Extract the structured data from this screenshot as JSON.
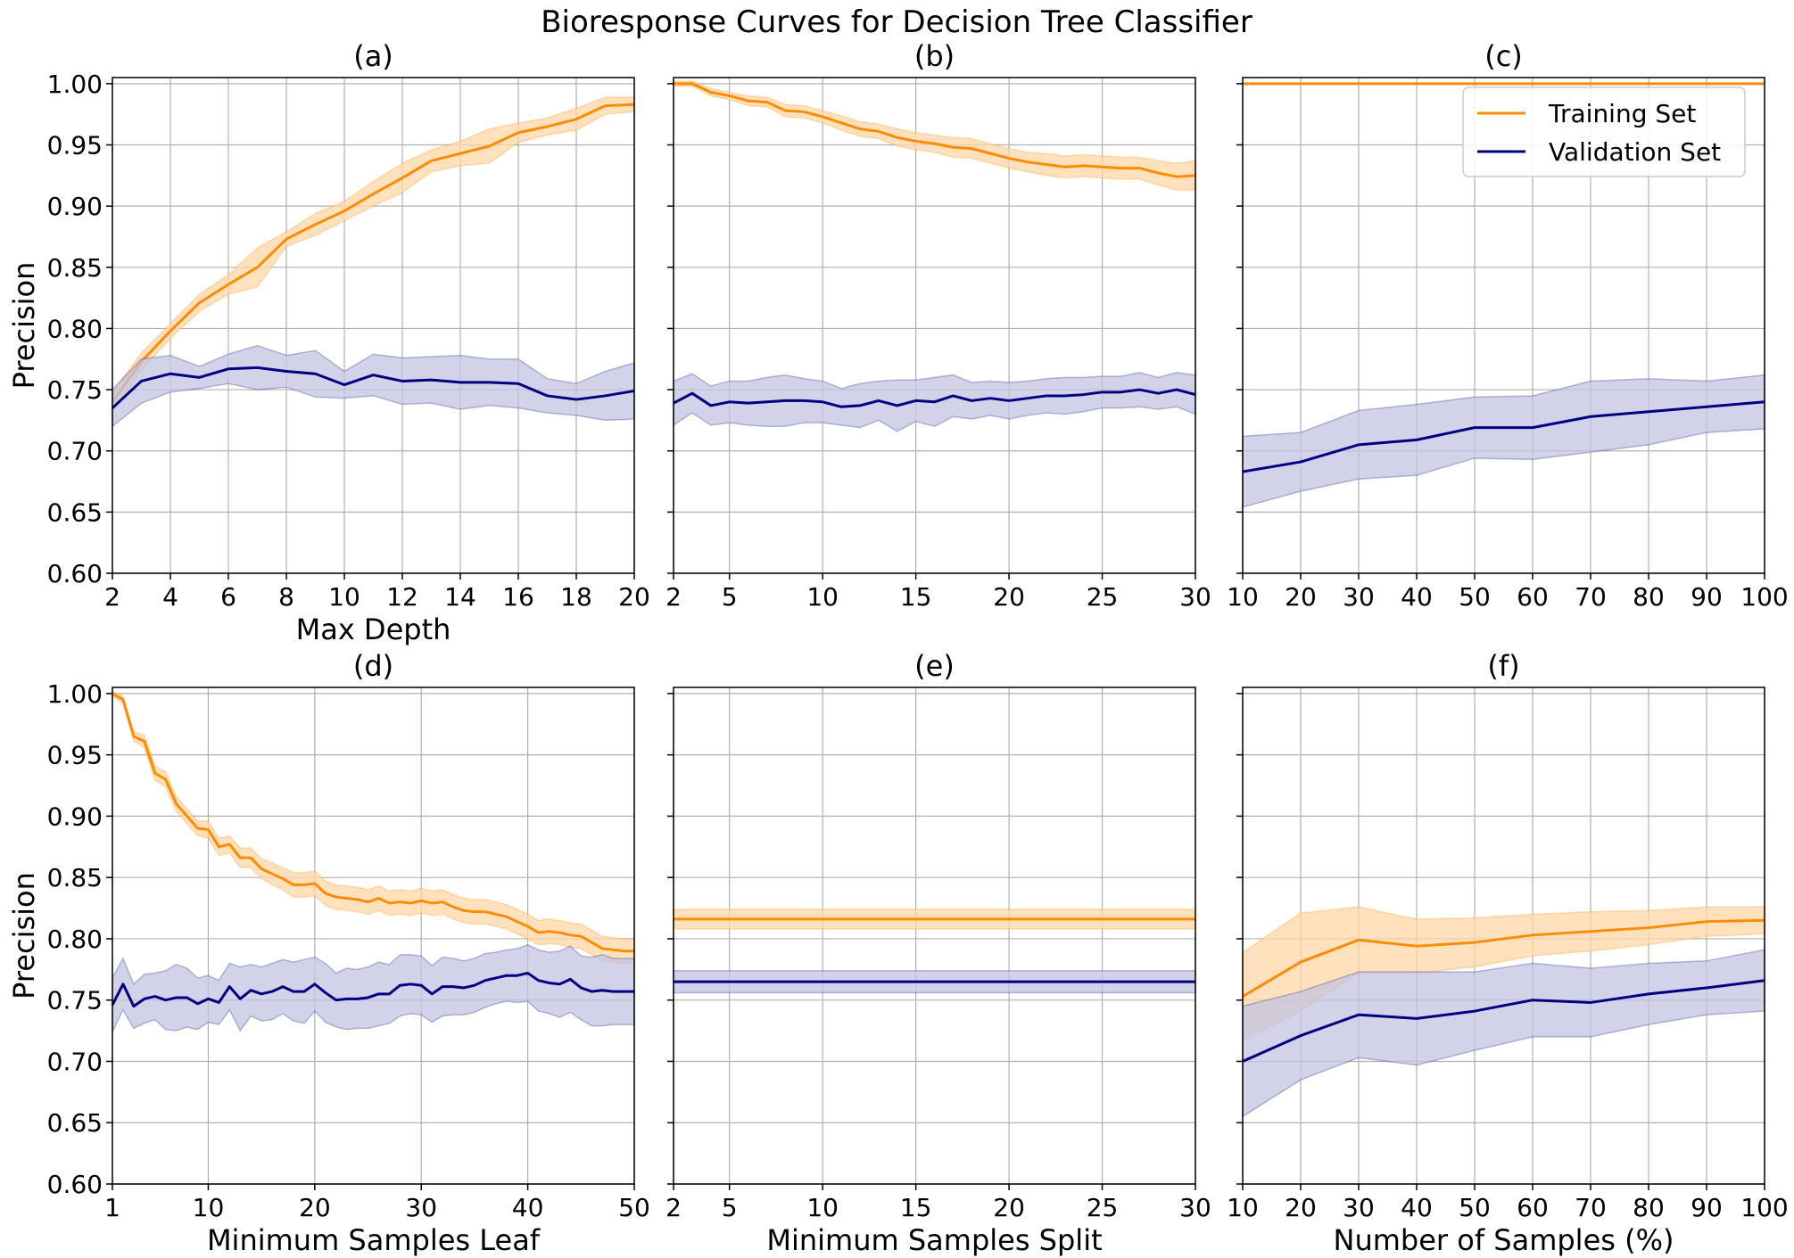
{
  "figure": {
    "title": "Bioresponse Curves for Decision Tree Classifier",
    "colors": {
      "training": "#ff8c00",
      "validation": "#000080",
      "training_band": "#ffd7a8",
      "validation_band": "#c3c3e0",
      "grid": "#b0b0b0"
    },
    "legend": {
      "location": "upper-right of panel (c)",
      "entries": [
        "Training Set",
        "Validation Set"
      ]
    }
  },
  "chart_data": [
    {
      "type": "line",
      "title": "(a)",
      "xlabel": "Max Depth",
      "ylabel": "Precision",
      "xlim": [
        2,
        20
      ],
      "ylim": [
        0.6,
        1.005
      ],
      "grid": true,
      "xticks": [
        2,
        4,
        6,
        8,
        10,
        12,
        14,
        16,
        18,
        20
      ],
      "yticks": [
        "0.60",
        "0.65",
        "0.70",
        "0.75",
        "0.80",
        "0.85",
        "0.90",
        "0.95",
        "1.00"
      ],
      "show_yticklabels": true,
      "x": [
        2,
        3,
        4,
        5,
        6,
        7,
        8,
        9,
        10,
        11,
        12,
        13,
        14,
        15,
        16,
        17,
        18,
        19,
        20
      ],
      "series": [
        {
          "name": "Training Set",
          "values": [
            0.74,
            0.773,
            0.798,
            0.821,
            0.836,
            0.85,
            0.873,
            0.885,
            0.896,
            0.91,
            0.923,
            0.937,
            0.943,
            0.949,
            0.96,
            0.965,
            0.971,
            0.982,
            0.983
          ],
          "band": [
            0.008,
            0.007,
            0.006,
            0.007,
            0.008,
            0.016,
            0.006,
            0.009,
            0.008,
            0.01,
            0.012,
            0.009,
            0.01,
            0.014,
            0.008,
            0.007,
            0.009,
            0.007,
            0.006
          ]
        },
        {
          "name": "Validation Set",
          "values": [
            0.735,
            0.757,
            0.763,
            0.76,
            0.767,
            0.768,
            0.765,
            0.763,
            0.754,
            0.762,
            0.757,
            0.758,
            0.756,
            0.756,
            0.755,
            0.745,
            0.742,
            0.745,
            0.749
          ],
          "band": [
            0.015,
            0.018,
            0.015,
            0.009,
            0.012,
            0.018,
            0.013,
            0.019,
            0.011,
            0.017,
            0.019,
            0.019,
            0.022,
            0.019,
            0.02,
            0.014,
            0.013,
            0.02,
            0.023
          ]
        }
      ]
    },
    {
      "type": "line",
      "title": "(b)",
      "xlabel": "",
      "ylabel": "",
      "xlim": [
        2,
        30
      ],
      "ylim": [
        0.6,
        1.005
      ],
      "grid": true,
      "xticks": [
        2,
        5,
        10,
        15,
        20,
        25,
        30
      ],
      "yticks": [
        "0.60",
        "0.65",
        "0.70",
        "0.75",
        "0.80",
        "0.85",
        "0.90",
        "0.95",
        "1.00"
      ],
      "show_yticklabels": false,
      "x": [
        2,
        3,
        4,
        5,
        6,
        7,
        8,
        9,
        10,
        11,
        12,
        13,
        14,
        15,
        16,
        17,
        18,
        19,
        20,
        21,
        22,
        23,
        24,
        25,
        26,
        27,
        28,
        29,
        30
      ],
      "series": [
        {
          "name": "Training Set",
          "values": [
            1.0,
            1.0,
            0.993,
            0.99,
            0.986,
            0.985,
            0.978,
            0.977,
            0.973,
            0.968,
            0.963,
            0.961,
            0.956,
            0.953,
            0.951,
            0.948,
            0.947,
            0.943,
            0.939,
            0.936,
            0.934,
            0.932,
            0.933,
            0.932,
            0.931,
            0.931,
            0.927,
            0.924,
            0.925
          ],
          "band": [
            0.002,
            0.002,
            0.003,
            0.003,
            0.004,
            0.004,
            0.005,
            0.005,
            0.005,
            0.006,
            0.006,
            0.006,
            0.007,
            0.007,
            0.007,
            0.008,
            0.008,
            0.008,
            0.008,
            0.008,
            0.009,
            0.009,
            0.009,
            0.009,
            0.009,
            0.009,
            0.01,
            0.011,
            0.012
          ]
        },
        {
          "name": "Validation Set",
          "values": [
            0.739,
            0.747,
            0.737,
            0.74,
            0.739,
            0.74,
            0.741,
            0.741,
            0.74,
            0.736,
            0.737,
            0.741,
            0.737,
            0.741,
            0.74,
            0.745,
            0.741,
            0.743,
            0.741,
            0.743,
            0.745,
            0.745,
            0.746,
            0.748,
            0.748,
            0.75,
            0.747,
            0.75,
            0.746
          ],
          "band": [
            0.018,
            0.016,
            0.016,
            0.017,
            0.018,
            0.02,
            0.021,
            0.018,
            0.017,
            0.015,
            0.018,
            0.016,
            0.021,
            0.017,
            0.02,
            0.017,
            0.015,
            0.014,
            0.015,
            0.014,
            0.014,
            0.015,
            0.014,
            0.013,
            0.013,
            0.014,
            0.013,
            0.014,
            0.016
          ]
        }
      ]
    },
    {
      "type": "line",
      "title": "(c)",
      "xlabel": "",
      "ylabel": "",
      "xlim": [
        10,
        100
      ],
      "ylim": [
        0.6,
        1.005
      ],
      "grid": true,
      "xticks": [
        10,
        20,
        30,
        40,
        50,
        60,
        70,
        80,
        90,
        100
      ],
      "yticks": [
        "0.60",
        "0.65",
        "0.70",
        "0.75",
        "0.80",
        "0.85",
        "0.90",
        "0.95",
        "1.00"
      ],
      "show_yticklabels": false,
      "x": [
        10,
        20,
        30,
        40,
        50,
        60,
        70,
        80,
        90,
        100
      ],
      "series": [
        {
          "name": "Training Set",
          "values": [
            1.0,
            1.0,
            1.0,
            1.0,
            1.0,
            1.0,
            1.0,
            1.0,
            1.0,
            1.0
          ],
          "band": [
            0,
            0,
            0,
            0,
            0,
            0,
            0,
            0,
            0,
            0
          ]
        },
        {
          "name": "Validation Set",
          "values": [
            0.683,
            0.691,
            0.705,
            0.709,
            0.719,
            0.719,
            0.728,
            0.732,
            0.736,
            0.74
          ],
          "band": [
            0.029,
            0.024,
            0.028,
            0.029,
            0.025,
            0.026,
            0.029,
            0.027,
            0.021,
            0.022
          ]
        }
      ]
    },
    {
      "type": "line",
      "title": "(d)",
      "xlabel": "Minimum Samples Leaf",
      "ylabel": "Precision",
      "xlim": [
        1,
        50
      ],
      "ylim": [
        0.6,
        1.005
      ],
      "grid": true,
      "xticks": [
        1,
        10,
        20,
        30,
        40,
        50
      ],
      "yticks": [
        "0.60",
        "0.65",
        "0.70",
        "0.75",
        "0.80",
        "0.85",
        "0.90",
        "0.95",
        "1.00"
      ],
      "show_yticklabels": true,
      "x": [
        1,
        2,
        3,
        4,
        5,
        6,
        7,
        8,
        9,
        10,
        11,
        12,
        13,
        14,
        15,
        16,
        17,
        18,
        19,
        20,
        21,
        22,
        23,
        24,
        25,
        26,
        27,
        28,
        29,
        30,
        31,
        32,
        33,
        34,
        35,
        36,
        37,
        38,
        39,
        40,
        41,
        42,
        43,
        44,
        45,
        46,
        47,
        48,
        49,
        50
      ],
      "series": [
        {
          "name": "Training Set",
          "values": [
            1.0,
            0.995,
            0.965,
            0.961,
            0.935,
            0.93,
            0.91,
            0.9,
            0.89,
            0.889,
            0.875,
            0.877,
            0.866,
            0.866,
            0.857,
            0.853,
            0.849,
            0.844,
            0.844,
            0.845,
            0.837,
            0.834,
            0.833,
            0.832,
            0.83,
            0.833,
            0.829,
            0.83,
            0.829,
            0.831,
            0.829,
            0.83,
            0.826,
            0.823,
            0.822,
            0.822,
            0.82,
            0.818,
            0.814,
            0.81,
            0.805,
            0.806,
            0.805,
            0.803,
            0.802,
            0.797,
            0.792,
            0.791,
            0.79,
            0.79
          ],
          "band": [
            0.002,
            0.003,
            0.004,
            0.005,
            0.006,
            0.006,
            0.006,
            0.006,
            0.006,
            0.007,
            0.007,
            0.007,
            0.008,
            0.008,
            0.008,
            0.009,
            0.009,
            0.01,
            0.01,
            0.01,
            0.01,
            0.01,
            0.01,
            0.01,
            0.01,
            0.01,
            0.01,
            0.01,
            0.01,
            0.01,
            0.01,
            0.01,
            0.01,
            0.01,
            0.01,
            0.01,
            0.01,
            0.01,
            0.01,
            0.01,
            0.01,
            0.01,
            0.01,
            0.01,
            0.01,
            0.01,
            0.01,
            0.01,
            0.01,
            0.01
          ]
        },
        {
          "name": "Validation Set",
          "values": [
            0.746,
            0.763,
            0.745,
            0.751,
            0.753,
            0.75,
            0.752,
            0.752,
            0.747,
            0.751,
            0.748,
            0.761,
            0.751,
            0.758,
            0.755,
            0.757,
            0.761,
            0.757,
            0.757,
            0.763,
            0.756,
            0.75,
            0.751,
            0.751,
            0.752,
            0.755,
            0.755,
            0.762,
            0.763,
            0.762,
            0.755,
            0.761,
            0.761,
            0.76,
            0.762,
            0.766,
            0.768,
            0.77,
            0.77,
            0.772,
            0.766,
            0.764,
            0.763,
            0.767,
            0.76,
            0.757,
            0.758,
            0.757,
            0.757,
            0.757
          ],
          "band": [
            0.022,
            0.021,
            0.018,
            0.02,
            0.019,
            0.024,
            0.027,
            0.024,
            0.021,
            0.019,
            0.018,
            0.019,
            0.026,
            0.021,
            0.022,
            0.023,
            0.022,
            0.024,
            0.026,
            0.022,
            0.024,
            0.022,
            0.025,
            0.024,
            0.025,
            0.026,
            0.024,
            0.025,
            0.024,
            0.024,
            0.023,
            0.024,
            0.023,
            0.022,
            0.022,
            0.022,
            0.021,
            0.021,
            0.022,
            0.023,
            0.025,
            0.025,
            0.027,
            0.027,
            0.026,
            0.028,
            0.029,
            0.027,
            0.027,
            0.027
          ]
        }
      ]
    },
    {
      "type": "line",
      "title": "(e)",
      "xlabel": "Minimum Samples Split",
      "ylabel": "",
      "xlim": [
        2,
        30
      ],
      "ylim": [
        0.6,
        1.005
      ],
      "grid": true,
      "xticks": [
        2,
        5,
        10,
        15,
        20,
        25,
        30
      ],
      "yticks": [
        "0.60",
        "0.65",
        "0.70",
        "0.75",
        "0.80",
        "0.85",
        "0.90",
        "0.95",
        "1.00"
      ],
      "show_yticklabels": false,
      "x": [
        2,
        30
      ],
      "series": [
        {
          "name": "Training Set",
          "values": [
            0.816,
            0.816
          ],
          "band": [
            0.008,
            0.008
          ]
        },
        {
          "name": "Validation Set",
          "values": [
            0.765,
            0.765
          ],
          "band": [
            0.009,
            0.009
          ]
        }
      ]
    },
    {
      "type": "line",
      "title": "(f)",
      "xlabel": "Number of Samples (%)",
      "ylabel": "",
      "xlim": [
        10,
        100
      ],
      "ylim": [
        0.6,
        1.005
      ],
      "grid": true,
      "xticks": [
        10,
        20,
        30,
        40,
        50,
        60,
        70,
        80,
        90,
        100
      ],
      "yticks": [
        "0.60",
        "0.65",
        "0.70",
        "0.75",
        "0.80",
        "0.85",
        "0.90",
        "0.95",
        "1.00"
      ],
      "show_yticklabels": false,
      "x": [
        10,
        20,
        30,
        40,
        50,
        60,
        70,
        80,
        90,
        100
      ],
      "series": [
        {
          "name": "Training Set",
          "values": [
            0.753,
            0.781,
            0.799,
            0.794,
            0.797,
            0.803,
            0.806,
            0.809,
            0.814,
            0.815
          ],
          "band": [
            0.036,
            0.04,
            0.027,
            0.022,
            0.02,
            0.017,
            0.016,
            0.014,
            0.012,
            0.011
          ]
        },
        {
          "name": "Validation Set",
          "values": [
            0.7,
            0.721,
            0.738,
            0.735,
            0.741,
            0.75,
            0.748,
            0.755,
            0.76,
            0.766
          ],
          "band": [
            0.045,
            0.036,
            0.035,
            0.038,
            0.032,
            0.03,
            0.028,
            0.025,
            0.022,
            0.025
          ]
        }
      ]
    }
  ]
}
